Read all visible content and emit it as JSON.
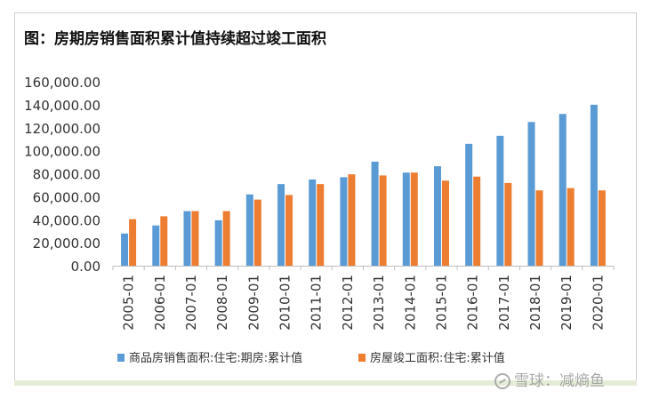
{
  "chart_data": {
    "type": "bar",
    "title": "图：房期房销售面积累计值持续超过竣工面积",
    "categories": [
      "2005-01",
      "2006-01",
      "2007-01",
      "2008-01",
      "2009-01",
      "2010-01",
      "2011-01",
      "2012-01",
      "2013-01",
      "2014-01",
      "2015-01",
      "2016-01",
      "2017-01",
      "2018-01",
      "2019-01",
      "2020-01"
    ],
    "series": [
      {
        "name": "商品房销售面积:住宅:期房:累计值",
        "color": "#5b9bd5",
        "values": [
          28000,
          35000,
          47500,
          39500,
          62000,
          71000,
          75000,
          77000,
          90500,
          81000,
          86500,
          106000,
          113000,
          125000,
          132000,
          140000
        ]
      },
      {
        "name": "房屋竣工面积:住宅:累计值",
        "color": "#ed7d31",
        "values": [
          40500,
          43000,
          47500,
          47500,
          57500,
          61500,
          71000,
          79500,
          78500,
          81000,
          74000,
          77500,
          72000,
          65500,
          67500,
          65500
        ]
      }
    ],
    "yticks": [
      "0.00",
      "20,000.00",
      "40,000.00",
      "60,000.00",
      "80,000.00",
      "100,000.00",
      "120,000.00",
      "140,000.00",
      "160,000.00"
    ],
    "ylim": [
      0,
      160000
    ],
    "grid": false,
    "legend": "bottom"
  },
  "watermark": "雪球：减熵鱼"
}
